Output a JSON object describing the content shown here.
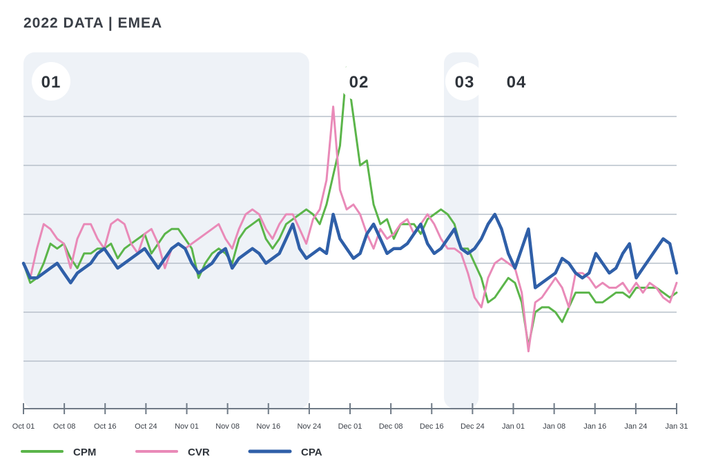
{
  "title": "2022 DATA | EMEA",
  "chart_data": {
    "type": "line",
    "title": "2022 DATA | EMEA",
    "xlabel": "",
    "ylabel": "",
    "ylim": [
      -3,
      6
    ],
    "grid": "horizontal",
    "legend": "bottom-left",
    "tick_labels": [
      "Oct 01",
      "Oct 08",
      "Oct 16",
      "Oct 24",
      "Nov 01",
      "Nov 08",
      "Nov 16",
      "Nov 24",
      "Dec 01",
      "Dec 08",
      "Dec 16",
      "Dec 24",
      "Jan 01",
      "Jan 08",
      "Jan 16",
      "Jan 24",
      "Jan 31"
    ],
    "phases": [
      {
        "label": "01",
        "from": 0,
        "to": 7,
        "shaded": true
      },
      {
        "label": "02",
        "from": 7,
        "to": 10.3,
        "shaded": false
      },
      {
        "label": "03",
        "from": 10.3,
        "to": 11.15,
        "shaded": true
      },
      {
        "label": "04",
        "from": 11.15,
        "to": 16,
        "shaded": false
      }
    ],
    "series": [
      {
        "name": "CPM",
        "color": "#5bb54a",
        "values": [
          0.0,
          -0.4,
          -0.3,
          0.0,
          0.4,
          0.3,
          0.4,
          0.1,
          -0.1,
          0.2,
          0.2,
          0.3,
          0.3,
          0.4,
          0.1,
          0.3,
          0.4,
          0.5,
          0.6,
          0.2,
          0.4,
          0.6,
          0.7,
          0.7,
          0.5,
          0.3,
          -0.3,
          0.0,
          0.2,
          0.3,
          0.2,
          0.0,
          0.5,
          0.7,
          0.8,
          0.9,
          0.5,
          0.3,
          0.5,
          0.8,
          0.9,
          1.0,
          1.1,
          1.0,
          0.8,
          1.2,
          1.8,
          2.4,
          4.0,
          3.0,
          2.0,
          2.1,
          1.2,
          0.8,
          0.9,
          0.5,
          0.8,
          0.8,
          0.8,
          0.6,
          0.9,
          1.0,
          1.1,
          1.0,
          0.8,
          0.3,
          0.3,
          0.0,
          -0.3,
          -0.8,
          -0.7,
          -0.5,
          -0.3,
          -0.4,
          -0.8,
          -1.7,
          -1.0,
          -0.9,
          -0.9,
          -1.0,
          -1.2,
          -0.9,
          -0.6,
          -0.6,
          -0.6,
          -0.8,
          -0.8,
          -0.7,
          -0.6,
          -0.6,
          -0.7,
          -0.5,
          -0.5,
          -0.5,
          -0.5,
          -0.6,
          -0.7,
          -0.6
        ]
      },
      {
        "name": "CVR",
        "color": "#e98ab8",
        "values": [
          0.0,
          -0.3,
          0.3,
          0.8,
          0.7,
          0.5,
          0.4,
          -0.1,
          0.5,
          0.8,
          0.8,
          0.5,
          0.3,
          0.8,
          0.9,
          0.8,
          0.4,
          0.2,
          0.6,
          0.7,
          0.4,
          -0.1,
          0.3,
          0.4,
          0.3,
          0.4,
          0.5,
          0.6,
          0.7,
          0.8,
          0.5,
          0.3,
          0.7,
          1.0,
          1.1,
          1.0,
          0.7,
          0.5,
          0.8,
          1.0,
          1.0,
          0.7,
          0.4,
          0.9,
          1.1,
          1.7,
          3.2,
          1.5,
          1.1,
          1.2,
          1.0,
          0.6,
          0.3,
          0.7,
          0.5,
          0.6,
          0.8,
          0.9,
          0.6,
          0.8,
          1.0,
          0.8,
          0.5,
          0.3,
          0.3,
          0.2,
          -0.2,
          -0.7,
          -0.9,
          -0.3,
          0.0,
          0.1,
          0.0,
          -0.1,
          -0.6,
          -1.8,
          -0.8,
          -0.7,
          -0.5,
          -0.3,
          -0.5,
          -0.9,
          -0.2,
          -0.2,
          -0.3,
          -0.5,
          -0.4,
          -0.5,
          -0.5,
          -0.4,
          -0.6,
          -0.4,
          -0.6,
          -0.4,
          -0.5,
          -0.7,
          -0.8,
          -0.4
        ]
      },
      {
        "name": "CPA",
        "color": "#2f5fa8",
        "values": [
          0.0,
          -0.3,
          -0.3,
          -0.2,
          -0.1,
          0.0,
          -0.2,
          -0.4,
          -0.2,
          -0.1,
          0.0,
          0.2,
          0.3,
          0.1,
          -0.1,
          0.0,
          0.1,
          0.2,
          0.3,
          0.1,
          -0.1,
          0.1,
          0.3,
          0.4,
          0.3,
          0.0,
          -0.2,
          -0.1,
          0.0,
          0.2,
          0.3,
          -0.1,
          0.1,
          0.2,
          0.3,
          0.2,
          0.0,
          0.1,
          0.2,
          0.5,
          0.8,
          0.3,
          0.1,
          0.2,
          0.3,
          0.2,
          1.0,
          0.5,
          0.3,
          0.1,
          0.2,
          0.6,
          0.8,
          0.5,
          0.2,
          0.3,
          0.3,
          0.4,
          0.6,
          0.8,
          0.4,
          0.2,
          0.3,
          0.5,
          0.7,
          0.3,
          0.2,
          0.3,
          0.5,
          0.8,
          1.0,
          0.7,
          0.2,
          -0.1,
          0.3,
          0.7,
          -0.5,
          -0.4,
          -0.3,
          -0.2,
          0.1,
          0.0,
          -0.2,
          -0.3,
          -0.2,
          0.2,
          0.0,
          -0.2,
          -0.1,
          0.2,
          0.4,
          -0.3,
          -0.1,
          0.1,
          0.3,
          0.5,
          0.4,
          -0.2
        ]
      }
    ]
  }
}
